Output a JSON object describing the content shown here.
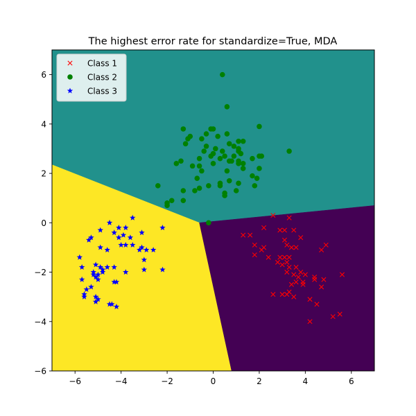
{
  "chart_data": {
    "type": "scatter",
    "title": "The highest error rate for standardize=True, MDA",
    "xlabel": "",
    "ylabel": "",
    "xlim": [
      -7,
      7
    ],
    "ylim": [
      -6,
      7
    ],
    "xticks": [
      -6,
      -4,
      -2,
      0,
      2,
      4,
      6
    ],
    "yticks": [
      -6,
      -4,
      -2,
      0,
      2,
      4,
      6
    ],
    "x_tick_labels": [
      "−6",
      "−4",
      "−2",
      "0",
      "2",
      "4",
      "6"
    ],
    "y_tick_labels": [
      "−6",
      "−4",
      "−2",
      "0",
      "2",
      "4",
      "6"
    ],
    "grid": false,
    "legend_position": "top-left",
    "decision_regions": [
      {
        "region": "upper",
        "color": "#21918c",
        "polygon": [
          [
            -7,
            2.35
          ],
          [
            -0.6,
            0.0
          ],
          [
            7,
            0.7
          ],
          [
            7,
            7
          ],
          [
            -7,
            7
          ]
        ]
      },
      {
        "region": "lower-left",
        "color": "#fde725",
        "polygon": [
          [
            -7,
            -6
          ],
          [
            0.8,
            -6
          ],
          [
            -0.6,
            0.0
          ],
          [
            -7,
            2.35
          ]
        ]
      },
      {
        "region": "lower-right",
        "color": "#440154",
        "polygon": [
          [
            0.8,
            -6
          ],
          [
            7,
            -6
          ],
          [
            7,
            0.7
          ],
          [
            -0.6,
            0.0
          ]
        ]
      }
    ],
    "series": [
      {
        "name": "Class 1",
        "color": "#ff0000",
        "marker": "x",
        "points": [
          [
            2.6,
            0.3
          ],
          [
            3.3,
            0.2
          ],
          [
            2.9,
            -0.3
          ],
          [
            3.1,
            -0.3
          ],
          [
            3.5,
            -0.3
          ],
          [
            3.8,
            -0.6
          ],
          [
            3.1,
            -0.7
          ],
          [
            2.2,
            -0.2
          ],
          [
            1.3,
            -0.5
          ],
          [
            1.6,
            -0.5
          ],
          [
            2.2,
            -1.0
          ],
          [
            2.1,
            -1.1
          ],
          [
            1.8,
            -0.9
          ],
          [
            3.2,
            -0.9
          ],
          [
            3.6,
            -1.0
          ],
          [
            3.4,
            -1.0
          ],
          [
            4.9,
            -0.9
          ],
          [
            4.7,
            -1.1
          ],
          [
            1.8,
            -1.3
          ],
          [
            2.4,
            -1.4
          ],
          [
            2.9,
            -1.4
          ],
          [
            3.1,
            -1.4
          ],
          [
            3.3,
            -1.4
          ],
          [
            2.8,
            -1.6
          ],
          [
            3.2,
            -1.6
          ],
          [
            3.0,
            -1.7
          ],
          [
            3.6,
            -1.8
          ],
          [
            3.3,
            -1.8
          ],
          [
            3.8,
            -2.0
          ],
          [
            4.0,
            -2.1
          ],
          [
            3.5,
            -2.1
          ],
          [
            3.7,
            -2.2
          ],
          [
            4.4,
            -2.2
          ],
          [
            4.8,
            -2.3
          ],
          [
            5.6,
            -2.1
          ],
          [
            3.2,
            -2.0
          ],
          [
            3.6,
            -2.4
          ],
          [
            3.9,
            -2.4
          ],
          [
            3.4,
            -2.5
          ],
          [
            3.9,
            -2.5
          ],
          [
            4.7,
            -2.6
          ],
          [
            3.3,
            -2.8
          ],
          [
            3.2,
            -2.9
          ],
          [
            2.6,
            -2.9
          ],
          [
            3.0,
            -2.9
          ],
          [
            3.5,
            -3.0
          ],
          [
            4.2,
            -3.1
          ],
          [
            4.5,
            -3.3
          ],
          [
            5.5,
            -3.7
          ],
          [
            5.2,
            -3.8
          ],
          [
            4.2,
            -4.0
          ],
          [
            4.4,
            -2.3
          ]
        ]
      },
      {
        "name": "Class 2",
        "color": "#008000",
        "marker": "o",
        "points": [
          [
            0.4,
            6.0
          ],
          [
            0.6,
            4.7
          ],
          [
            2.0,
            3.9
          ],
          [
            -1.3,
            3.8
          ],
          [
            -0.1,
            3.8
          ],
          [
            0.0,
            3.8
          ],
          [
            -0.3,
            3.6
          ],
          [
            0.6,
            3.6
          ],
          [
            -1.0,
            3.5
          ],
          [
            -0.5,
            3.4
          ],
          [
            0.2,
            3.5
          ],
          [
            -1.1,
            3.4
          ],
          [
            1.1,
            3.3
          ],
          [
            1.3,
            3.3
          ],
          [
            -1.2,
            3.2
          ],
          [
            0.7,
            3.2
          ],
          [
            -0.3,
            3.1
          ],
          [
            0.9,
            3.1
          ],
          [
            0.1,
            3.0
          ],
          [
            1.1,
            3.0
          ],
          [
            1.1,
            2.9
          ],
          [
            -0.4,
            2.9
          ],
          [
            0.4,
            2.9
          ],
          [
            3.3,
            2.9
          ],
          [
            1.2,
            2.8
          ],
          [
            0.0,
            2.8
          ],
          [
            -0.1,
            2.7
          ],
          [
            0.5,
            2.7
          ],
          [
            0.9,
            2.7
          ],
          [
            2.0,
            2.7
          ],
          [
            2.1,
            2.7
          ],
          [
            -0.6,
            2.6
          ],
          [
            0.3,
            2.6
          ],
          [
            1.7,
            2.6
          ],
          [
            1.1,
            2.5
          ],
          [
            -1.6,
            2.4
          ],
          [
            -1.4,
            2.5
          ],
          [
            0.7,
            2.5
          ],
          [
            0.8,
            2.5
          ],
          [
            1.1,
            2.4
          ],
          [
            1.3,
            2.4
          ],
          [
            0.0,
            2.4
          ],
          [
            -0.6,
            2.3
          ],
          [
            -0.9,
            2.3
          ],
          [
            1.3,
            2.2
          ],
          [
            2.0,
            2.2
          ],
          [
            -0.5,
            2.1
          ],
          [
            0.6,
            2.1
          ],
          [
            -0.7,
            1.8
          ],
          [
            1.7,
            1.9
          ],
          [
            0.7,
            1.7
          ],
          [
            0.3,
            1.6
          ],
          [
            1.1,
            1.6
          ],
          [
            1.9,
            1.8
          ],
          [
            -0.2,
            1.5
          ],
          [
            0.3,
            1.5
          ],
          [
            -0.6,
            1.4
          ],
          [
            -0.8,
            1.3
          ],
          [
            -1.3,
            1.3
          ],
          [
            1.8,
            1.5
          ],
          [
            1.0,
            1.3
          ],
          [
            0.5,
            1.2
          ],
          [
            0.5,
            1.1
          ],
          [
            -2.4,
            1.5
          ],
          [
            -1.3,
            0.9
          ],
          [
            -1.8,
            0.9
          ],
          [
            -2.0,
            0.8
          ],
          [
            -2.0,
            0.7
          ],
          [
            -0.2,
            0.0
          ]
        ]
      },
      {
        "name": "Class 3",
        "color": "#0000ff",
        "marker": "*",
        "points": [
          [
            -3.5,
            0.2
          ],
          [
            -2.2,
            -0.2
          ],
          [
            -4.5,
            0.0
          ],
          [
            -4.1,
            -0.2
          ],
          [
            -3.8,
            -0.2
          ],
          [
            -4.9,
            -0.3
          ],
          [
            -4.3,
            -0.4
          ],
          [
            -3.1,
            -0.4
          ],
          [
            -5.3,
            -0.6
          ],
          [
            -3.9,
            -0.5
          ],
          [
            -3.6,
            -0.6
          ],
          [
            -4.1,
            -0.6
          ],
          [
            -5.4,
            -0.7
          ],
          [
            -3.8,
            -0.9
          ],
          [
            -4.0,
            -0.9
          ],
          [
            -3.5,
            -0.9
          ],
          [
            -3.1,
            -1.0
          ],
          [
            -2.9,
            -1.1
          ],
          [
            -3.2,
            -1.1
          ],
          [
            -2.6,
            -1.1
          ],
          [
            -4.9,
            -1.0
          ],
          [
            -4.6,
            -1.1
          ],
          [
            -3.0,
            -1.5
          ],
          [
            -5.8,
            -1.4
          ],
          [
            -4.3,
            -1.8
          ],
          [
            -5.1,
            -1.7
          ],
          [
            -4.9,
            -1.8
          ],
          [
            -4.6,
            -1.8
          ],
          [
            -5.7,
            -1.8
          ],
          [
            -4.8,
            -1.9
          ],
          [
            -3.8,
            -2.0
          ],
          [
            -3.0,
            -1.9
          ],
          [
            -2.2,
            -1.9
          ],
          [
            -5.2,
            -2.0
          ],
          [
            -5.0,
            -2.1
          ],
          [
            -5.2,
            -2.1
          ],
          [
            -5.1,
            -2.2
          ],
          [
            -5.0,
            -2.3
          ],
          [
            -5.7,
            -2.3
          ],
          [
            -4.3,
            -2.4
          ],
          [
            -4.2,
            -2.4
          ],
          [
            -5.3,
            -2.6
          ],
          [
            -5.5,
            -2.7
          ],
          [
            -5.6,
            -2.9
          ],
          [
            -5.6,
            -3.0
          ],
          [
            -5.1,
            -3.0
          ],
          [
            -5.0,
            -3.1
          ],
          [
            -5.1,
            -3.2
          ],
          [
            -4.4,
            -3.3
          ],
          [
            -4.5,
            -3.3
          ],
          [
            -4.2,
            -3.4
          ],
          [
            -4.8,
            -2.0
          ]
        ]
      }
    ]
  }
}
